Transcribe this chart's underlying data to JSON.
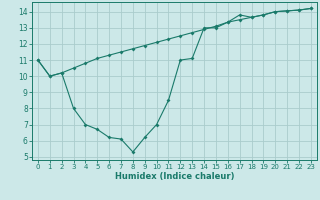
{
  "xlabel": "Humidex (Indice chaleur)",
  "background_color": "#cce8e8",
  "grid_color": "#aacccc",
  "line_color": "#1a7a6a",
  "xlim": [
    -0.5,
    23.5
  ],
  "ylim": [
    4.8,
    14.6
  ],
  "yticks": [
    5,
    6,
    7,
    8,
    9,
    10,
    11,
    12,
    13,
    14
  ],
  "xticks": [
    0,
    1,
    2,
    3,
    4,
    5,
    6,
    7,
    8,
    9,
    10,
    11,
    12,
    13,
    14,
    15,
    16,
    17,
    18,
    19,
    20,
    21,
    22,
    23
  ],
  "line1_x": [
    0,
    1,
    2,
    3,
    4,
    5,
    6,
    7,
    8,
    9,
    10,
    11,
    12,
    13,
    14,
    15,
    16,
    17,
    18,
    19,
    20,
    21,
    22,
    23
  ],
  "line1_y": [
    11.0,
    10.0,
    10.2,
    10.5,
    10.8,
    11.1,
    11.3,
    11.5,
    11.7,
    11.9,
    12.1,
    12.3,
    12.5,
    12.7,
    12.9,
    13.1,
    13.35,
    13.5,
    13.65,
    13.8,
    14.0,
    14.05,
    14.1,
    14.2
  ],
  "line2_x": [
    0,
    1,
    2,
    3,
    4,
    5,
    6,
    7,
    8,
    9,
    10,
    11,
    12,
    13,
    14,
    15,
    16,
    17,
    18,
    19,
    20,
    21,
    22,
    23
  ],
  "line2_y": [
    11.0,
    10.0,
    10.2,
    8.0,
    7.0,
    6.7,
    6.2,
    6.1,
    5.3,
    6.2,
    7.0,
    8.5,
    11.0,
    11.1,
    13.0,
    13.0,
    13.35,
    13.8,
    13.65,
    13.8,
    14.0,
    14.05,
    14.1,
    14.2
  ]
}
